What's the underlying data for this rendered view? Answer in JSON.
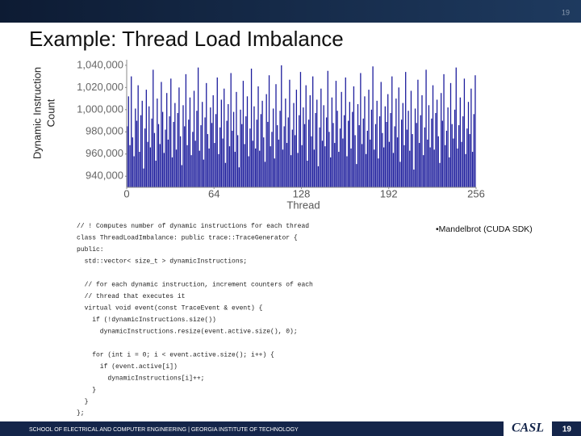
{
  "chart_data": {
    "type": "bar",
    "ylabel_lines": [
      "Dynamic Instruction",
      "Count"
    ],
    "xlabel": "Thread",
    "color": "#1c1c9c",
    "xlim": [
      0,
      256
    ],
    "xticks": [
      0,
      64,
      128,
      192,
      256
    ],
    "ylim": [
      930000,
      1045000
    ],
    "yticks": [
      {
        "value": 940000,
        "label": "940,000"
      },
      {
        "value": 960000,
        "label": "960,000"
      },
      {
        "value": 980000,
        "label": "980,000"
      },
      {
        "value": 1000000,
        "label": "1,000,000"
      },
      {
        "value": 1020000,
        "label": "1,020,000"
      },
      {
        "value": 1040000,
        "label": "1,040,000"
      }
    ],
    "values": [
      985000,
      1012000,
      968000,
      1030000,
      975000,
      958000,
      1001000,
      990000,
      1022000,
      962000,
      995000,
      1008000,
      947000,
      983000,
      1018000,
      971000,
      1003000,
      966000,
      992000,
      1036000,
      979000,
      954000,
      1010000,
      987000,
      969000,
      1025000,
      998000,
      961000,
      982000,
      1015000,
      973000,
      994000,
      1028000,
      957000,
      989000,
      1006000,
      964000,
      997000,
      1020000,
      976000,
      950000,
      1004000,
      985000,
      1032000,
      968000,
      991000,
      1011000,
      959000,
      980000,
      1017000,
      972000,
      999000,
      1038000,
      963000,
      986000,
      1007000,
      955000,
      993000,
      1024000,
      978000,
      965000,
      1002000,
      988000,
      1013000,
      970000,
      996000,
      1029000,
      960000,
      984000,
      1009000,
      974000,
      1019000,
      952000,
      990000,
      1005000,
      967000,
      1033000,
      981000,
      998000,
      962000,
      1016000,
      977000,
      948000,
      1000000,
      987000,
      1026000,
      969000,
      994000,
      1012000,
      958000,
      983000,
      1037000,
      972000,
      1003000,
      965000,
      991000,
      1021000,
      963000,
      996000,
      1008000,
      975000,
      953000,
      1014000,
      989000,
      1031000,
      967000,
      980000,
      1001000,
      956000,
      1023000,
      986000,
      973000,
      999000,
      1040000,
      964000,
      985000,
      1010000,
      970000,
      993000,
      1027000,
      959000,
      982000,
      1006000,
      977000,
      1018000,
      961000,
      995000,
      1034000,
      968000,
      1002000,
      987000,
      1022000,
      954000,
      991000,
      1013000,
      976000,
      1030000,
      964000,
      997000,
      1009000,
      949000,
      984000,
      1019000,
      972000,
      1004000,
      967000,
      993000,
      1035000,
      980000,
      957000,
      1011000,
      988000,
      970000,
      1026000,
      999000,
      962000,
      983000,
      1016000,
      974000,
      995000,
      1029000,
      958000,
      990000,
      1007000,
      965000,
      998000,
      1021000,
      977000,
      951000,
      1005000,
      986000,
      1033000,
      969000,
      992000,
      1012000,
      960000,
      981000,
      1018000,
      973000,
      1000000,
      1039000,
      964000,
      987000,
      1008000,
      956000,
      994000,
      1025000,
      979000,
      966000,
      1003000,
      989000,
      1014000,
      971000,
      997000,
      1030000,
      961000,
      985000,
      1010000,
      975000,
      1020000,
      953000,
      991000,
      1006000,
      968000,
      1034000,
      982000,
      999000,
      963000,
      1017000,
      978000,
      946000,
      1001000,
      988000,
      1027000,
      970000,
      995000,
      1013000,
      959000,
      984000,
      1036000,
      973000,
      1004000,
      966000,
      992000,
      1022000,
      964000,
      997000,
      1009000,
      976000,
      952000,
      1015000,
      990000,
      1032000,
      968000,
      981000,
      1002000,
      957000,
      1024000,
      987000,
      974000,
      1000000,
      1038000,
      965000,
      986000,
      1011000,
      971000,
      994000,
      1028000,
      960000,
      983000,
      1007000,
      978000,
      1019000,
      962000,
      996000,
      1031000
    ]
  },
  "slide": {
    "page_number": "19",
    "title": "Example: Thread Load Imbalance",
    "bullet": "•Mandelbrot (CUDA SDK)",
    "code": [
      "// ! Computes number of dynamic instructions for each thread",
      "class ThreadLoadImbalance: public trace::TraceGenerator {",
      "public:",
      "  std::vector< size_t > dynamicInstructions;",
      "  // for each dynamic instruction, increment counters of each",
      "  // thread that executes it",
      "  virtual void event(const TraceEvent & event) {",
      "    if (!dynamicInstructions.size())",
      "      dynamicInstructions.resize(event.active.size(), 0);",
      "    for (int i = 0; i < event.active.size(); i++) {",
      "      if (event.active[i])",
      "        dynamicInstructions[i]++;",
      "    }",
      "  }",
      "};"
    ],
    "footer": "SCHOOL OF ELECTRICAL AND COMPUTER ENGINEERING | GEORGIA INSTITUTE OF TECHNOLOGY",
    "logo": "CASL",
    "footer_page": "19"
  }
}
